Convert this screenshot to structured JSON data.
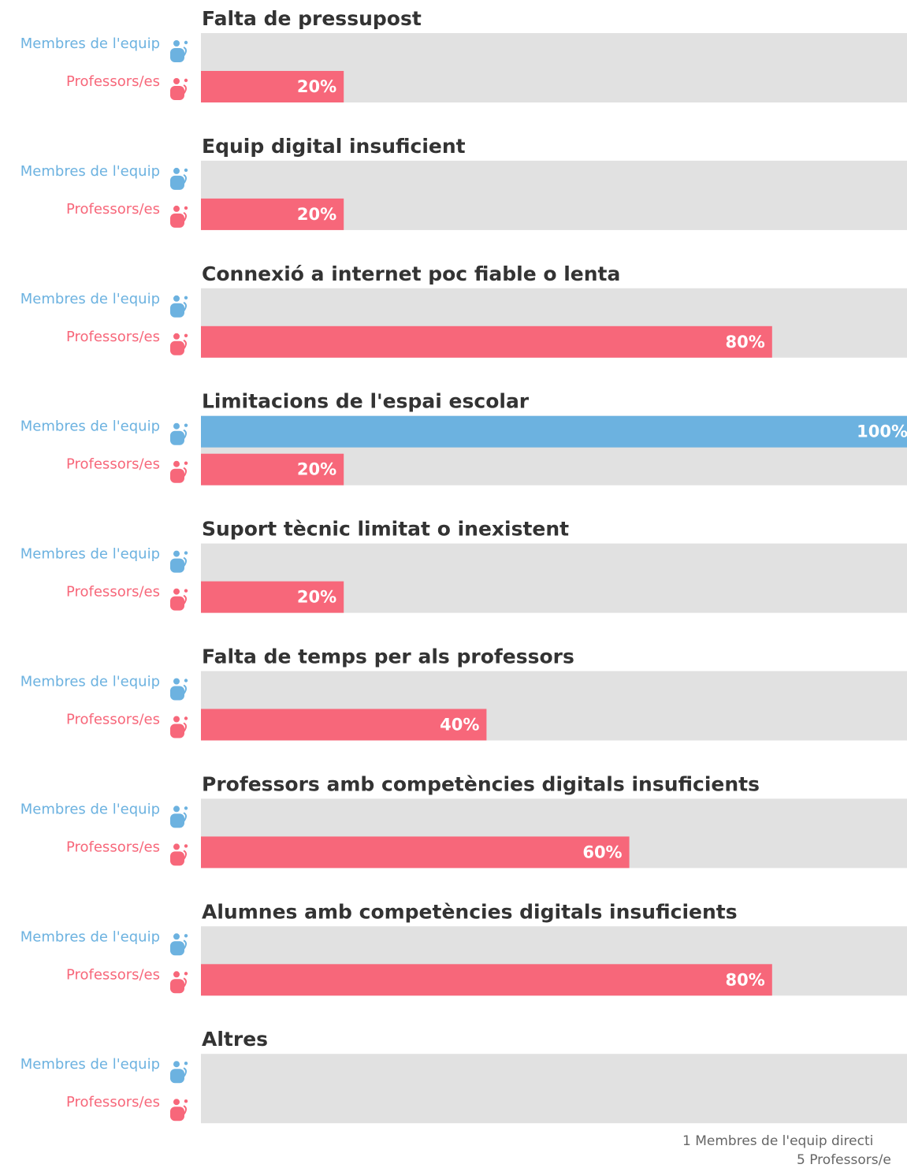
{
  "chart_data": {
    "type": "bar",
    "orientation": "horizontal",
    "categories": [
      "Falta de pressupost",
      "Equip digital insuficient",
      "Connexió a internet poc fiable o lenta",
      "Limitacions de l'espai escolar",
      "Suport tècnic limitat o inexistent",
      "Falta de temps per als professors",
      "Professors amb competències digitals insuficients",
      "Alumnes amb competències digitals insuficients",
      "Altres"
    ],
    "series": [
      {
        "name": "Membres de l'equip",
        "color": "#6cb2e0",
        "values": [
          0,
          0,
          0,
          100,
          0,
          0,
          0,
          0,
          0
        ],
        "value_labels": [
          null,
          null,
          null,
          "100%",
          null,
          null,
          null,
          null,
          null
        ]
      },
      {
        "name": "Professors/es",
        "color": "#f7677a",
        "values": [
          20,
          20,
          80,
          20,
          20,
          40,
          60,
          80,
          0
        ],
        "value_labels": [
          "20%",
          "20%",
          "80%",
          "20%",
          "20%",
          "40%",
          "60%",
          "80%",
          null
        ]
      }
    ],
    "xlim": [
      0,
      100
    ],
    "background_color": "#e1e1e1",
    "footnotes": [
      "1 Membres de l'equip directi",
      "5 Professors/e"
    ]
  }
}
